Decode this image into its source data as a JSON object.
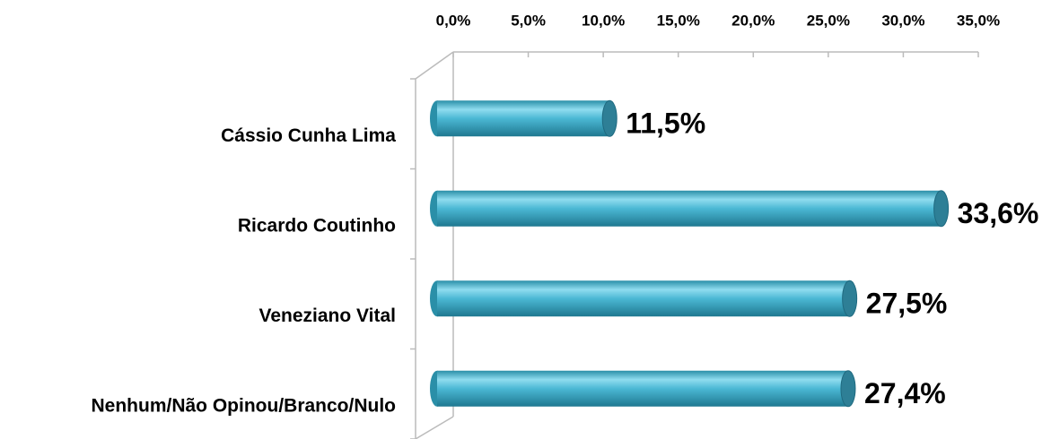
{
  "chart_data": {
    "type": "bar",
    "orientation": "horizontal",
    "categories": [
      "Cássio Cunha Lima",
      "Ricardo Coutinho",
      "Veneziano Vital",
      "Nenhum/Não Opinou/Branco/Nulo"
    ],
    "values": [
      11.5,
      33.6,
      27.5,
      27.4
    ],
    "value_labels": [
      "11,5%",
      "33,6%",
      "27,5%",
      "27,4%"
    ],
    "color": "#4bb8d4",
    "xlim": [
      0,
      35
    ],
    "xticks": [
      {
        "value": 0,
        "label": "0,0%"
      },
      {
        "value": 5,
        "label": "5,0%"
      },
      {
        "value": 10,
        "label": "10,0%"
      },
      {
        "value": 15,
        "label": "15,0%"
      },
      {
        "value": 20,
        "label": "20,0%"
      },
      {
        "value": 25,
        "label": "25,0%"
      },
      {
        "value": 30,
        "label": "30,0%"
      },
      {
        "value": 35,
        "label": "35,0%"
      }
    ]
  }
}
